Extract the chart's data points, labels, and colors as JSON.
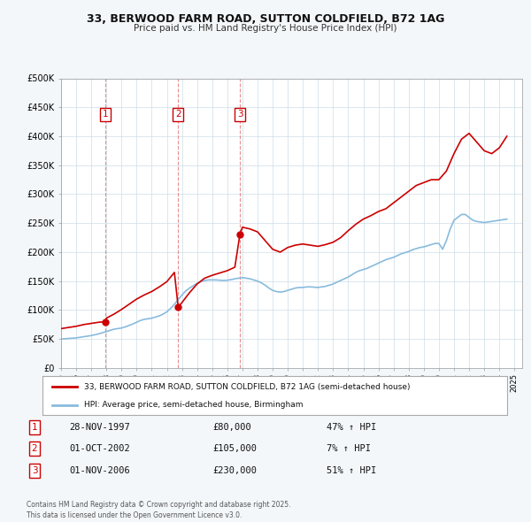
{
  "title": "33, BERWOOD FARM ROAD, SUTTON COLDFIELD, B72 1AG",
  "subtitle": "Price paid vs. HM Land Registry's House Price Index (HPI)",
  "bg_color": "#f4f7fa",
  "plot_bg_color": "#ffffff",
  "ylim": [
    0,
    500000
  ],
  "yticks": [
    0,
    50000,
    100000,
    150000,
    200000,
    250000,
    300000,
    350000,
    400000,
    450000,
    500000
  ],
  "ytick_labels": [
    "£0",
    "£50K",
    "£100K",
    "£150K",
    "£200K",
    "£250K",
    "£300K",
    "£350K",
    "£400K",
    "£450K",
    "£500K"
  ],
  "xlim_start": 1995.0,
  "xlim_end": 2025.5,
  "xtick_years": [
    1995,
    1996,
    1997,
    1998,
    1999,
    2000,
    2001,
    2002,
    2003,
    2004,
    2005,
    2006,
    2007,
    2008,
    2009,
    2010,
    2011,
    2012,
    2013,
    2014,
    2015,
    2016,
    2017,
    2018,
    2019,
    2020,
    2021,
    2022,
    2023,
    2024,
    2025
  ],
  "sale_color": "#cc0000",
  "hpi_color": "#88bbdd",
  "sale_label": "33, BERWOOD FARM ROAD, SUTTON COLDFIELD, B72 1AG (semi-detached house)",
  "hpi_label": "HPI: Average price, semi-detached house, Birmingham",
  "transactions": [
    {
      "num": 1,
      "date_str": "28-NOV-1997",
      "year": 1997.91,
      "price": 80000,
      "pct": "47%",
      "dir": "↑"
    },
    {
      "num": 2,
      "date_str": "01-OCT-2002",
      "year": 2002.75,
      "price": 105000,
      "pct": "7%",
      "dir": "↑"
    },
    {
      "num": 3,
      "date_str": "01-NOV-2006",
      "year": 2006.83,
      "price": 230000,
      "pct": "51%",
      "dir": "↑"
    }
  ],
  "footer": "Contains HM Land Registry data © Crown copyright and database right 2025.\nThis data is licensed under the Open Government Licence v3.0.",
  "hpi_data": {
    "years": [
      1995.0,
      1995.25,
      1995.5,
      1995.75,
      1996.0,
      1996.25,
      1996.5,
      1996.75,
      1997.0,
      1997.25,
      1997.5,
      1997.75,
      1998.0,
      1998.25,
      1998.5,
      1998.75,
      1999.0,
      1999.25,
      1999.5,
      1999.75,
      2000.0,
      2000.25,
      2000.5,
      2000.75,
      2001.0,
      2001.25,
      2001.5,
      2001.75,
      2002.0,
      2002.25,
      2002.5,
      2002.75,
      2003.0,
      2003.25,
      2003.5,
      2003.75,
      2004.0,
      2004.25,
      2004.5,
      2004.75,
      2005.0,
      2005.25,
      2005.5,
      2005.75,
      2006.0,
      2006.25,
      2006.5,
      2006.75,
      2007.0,
      2007.25,
      2007.5,
      2007.75,
      2008.0,
      2008.25,
      2008.5,
      2008.75,
      2009.0,
      2009.25,
      2009.5,
      2009.75,
      2010.0,
      2010.25,
      2010.5,
      2010.75,
      2011.0,
      2011.25,
      2011.5,
      2011.75,
      2012.0,
      2012.25,
      2012.5,
      2012.75,
      2013.0,
      2013.25,
      2013.5,
      2013.75,
      2014.0,
      2014.25,
      2014.5,
      2014.75,
      2015.0,
      2015.25,
      2015.5,
      2015.75,
      2016.0,
      2016.25,
      2016.5,
      2016.75,
      2017.0,
      2017.25,
      2017.5,
      2017.75,
      2018.0,
      2018.25,
      2018.5,
      2018.75,
      2019.0,
      2019.25,
      2019.5,
      2019.75,
      2020.0,
      2020.25,
      2020.5,
      2020.75,
      2021.0,
      2021.25,
      2021.5,
      2021.75,
      2022.0,
      2022.25,
      2022.5,
      2022.75,
      2023.0,
      2023.25,
      2023.5,
      2023.75,
      2024.0,
      2024.25,
      2024.5
    ],
    "values": [
      50000,
      50500,
      51000,
      51500,
      52000,
      53000,
      54000,
      55000,
      56000,
      57500,
      59000,
      61000,
      63000,
      65000,
      67000,
      68000,
      69000,
      71000,
      73500,
      76000,
      79000,
      82000,
      84000,
      85000,
      86000,
      88000,
      90000,
      93000,
      97000,
      103000,
      110000,
      118000,
      126000,
      133000,
      138000,
      142000,
      146000,
      149000,
      151000,
      152000,
      152000,
      152000,
      151500,
      151000,
      151500,
      152500,
      154000,
      155000,
      156000,
      155000,
      154000,
      152000,
      150000,
      147000,
      143000,
      138000,
      134000,
      132000,
      131000,
      132000,
      134000,
      136000,
      138000,
      139000,
      139000,
      140000,
      140000,
      139500,
      139000,
      140000,
      141000,
      143000,
      145000,
      148000,
      151000,
      154000,
      157000,
      161000,
      165000,
      168000,
      170000,
      172000,
      175000,
      178000,
      181000,
      184000,
      187000,
      189000,
      191000,
      194000,
      197000,
      199000,
      201000,
      204000,
      206000,
      208000,
      209000,
      211000,
      213000,
      215000,
      215000,
      205000,
      220000,
      240000,
      255000,
      260000,
      265000,
      265000,
      260000,
      255000,
      253000,
      252000,
      251000,
      252000,
      253000,
      254000,
      255000,
      256000,
      257000
    ]
  },
  "sale_hpi_data": {
    "years": [
      1995.0,
      1995.5,
      1996.0,
      1996.5,
      1997.0,
      1997.5,
      1997.91,
      1998.0,
      1998.5,
      1999.0,
      1999.5,
      2000.0,
      2000.5,
      2001.0,
      2001.5,
      2002.0,
      2002.5,
      2002.75,
      2003.0,
      2003.5,
      2004.0,
      2004.5,
      2005.0,
      2005.5,
      2006.0,
      2006.5,
      2006.83,
      2007.0,
      2007.5,
      2008.0,
      2008.5,
      2009.0,
      2009.5,
      2010.0,
      2010.5,
      2011.0,
      2011.5,
      2012.0,
      2012.5,
      2013.0,
      2013.5,
      2014.0,
      2014.5,
      2015.0,
      2015.5,
      2016.0,
      2016.5,
      2017.0,
      2017.5,
      2018.0,
      2018.5,
      2019.0,
      2019.5,
      2020.0,
      2020.5,
      2021.0,
      2021.5,
      2022.0,
      2022.5,
      2023.0,
      2023.5,
      2024.0,
      2024.5
    ],
    "values": [
      68000,
      70000,
      72000,
      75000,
      77000,
      79000,
      80000,
      86000,
      93000,
      101000,
      110000,
      119000,
      126000,
      132000,
      140000,
      149000,
      165000,
      105000,
      113000,
      130000,
      145000,
      155000,
      160000,
      164000,
      168000,
      174000,
      230000,
      243000,
      240000,
      235000,
      220000,
      205000,
      200000,
      208000,
      212000,
      214000,
      212000,
      210000,
      213000,
      217000,
      225000,
      237000,
      248000,
      257000,
      263000,
      270000,
      275000,
      285000,
      295000,
      305000,
      315000,
      320000,
      325000,
      325000,
      340000,
      370000,
      395000,
      405000,
      390000,
      375000,
      370000,
      380000,
      400000
    ]
  }
}
